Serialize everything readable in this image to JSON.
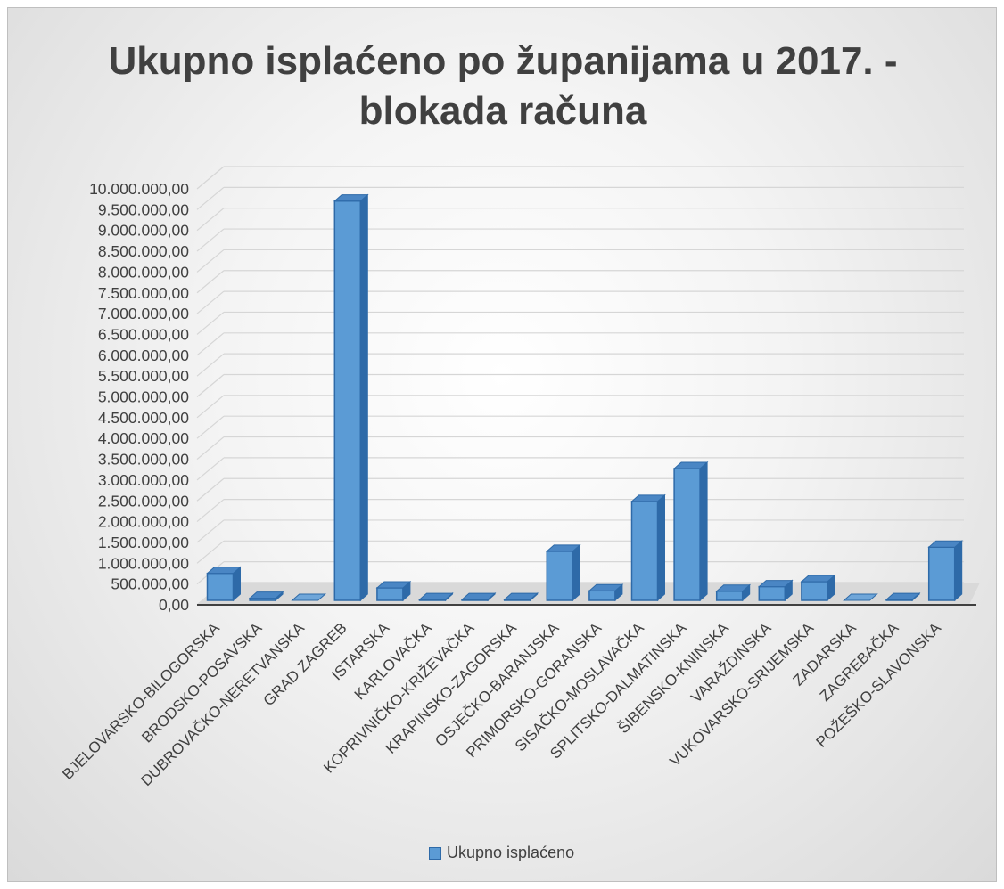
{
  "chart_data": {
    "type": "bar",
    "title_line1": "Ukupno isplaćeno po županijama u 2017. -",
    "title_line2": "blokada računa",
    "categories": [
      "BJELOVARSKO-BILOGORSKA",
      "BRODSKO-POSAVSKA",
      "DUBROVAČKO-NERETVANSKA",
      "GRAD ZAGREB",
      "ISTARSKA",
      "KARLOVAČKA",
      "KOPRIVNIČKO-KRIŽEVAČKA",
      "KRAPINSKO-ZAGORSKA",
      "OSJEČKO-BARANJSKA",
      "PRIMORSKO-GORANSKA",
      "SISAČKO-MOSLAVAČKA",
      "SPLITSKO-DALMATINSKA",
      "ŠIBENSKO-KNINSKA",
      "VARAŽDINSKA",
      "VUKOVARSKO-SRIJEMSKA",
      "ZADARSKA",
      "ZAGREBAČKA",
      "POŽEŠKO-SLAVONSKA"
    ],
    "series": [
      {
        "name": "Ukupno isplaćeno",
        "values": [
          650000,
          50000,
          0,
          9600000,
          300000,
          20000,
          20000,
          20000,
          1180000,
          230000,
          2380000,
          3170000,
          220000,
          330000,
          450000,
          0,
          20000,
          1280000
        ]
      }
    ],
    "ylim": [
      0,
      10000000
    ],
    "ytick_step": 500000,
    "ytick_labels": [
      "0,00",
      "500.000,00",
      "1.000.000,00",
      "1.500.000,00",
      "2.000.000,00",
      "2.500.000,00",
      "3.000.000,00",
      "3.500.000,00",
      "4.000.000,00",
      "4.500.000,00",
      "5.000.000,00",
      "5.500.000,00",
      "6.000.000,00",
      "6.500.000,00",
      "7.000.000,00",
      "7.500.000,00",
      "8.000.000,00",
      "8.500.000,00",
      "9.000.000,00",
      "9.500.000,00",
      "10.000.000,00"
    ],
    "legend": "bottom",
    "grid": true,
    "style": "3d-column",
    "colors": {
      "front": "#5b9bd5",
      "top": "#4a86c4",
      "side": "#2e6aa8",
      "edge": "#2e6aa8"
    }
  }
}
